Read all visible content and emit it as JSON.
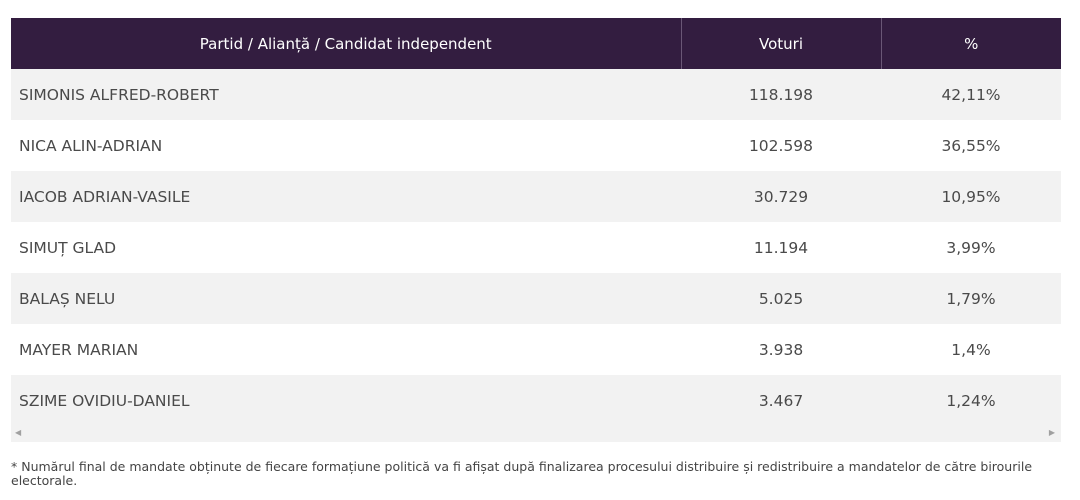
{
  "table": {
    "headers": {
      "party": "Partid / Alianță / Candidat independent",
      "votes": "Voturi",
      "percent": "%"
    },
    "rows": [
      {
        "name": "SIMONIS ALFRED-ROBERT",
        "votes": "118.198",
        "percent": "42,11%"
      },
      {
        "name": "NICA ALIN-ADRIAN",
        "votes": "102.598",
        "percent": "36,55%"
      },
      {
        "name": "IACOB ADRIAN-VASILE",
        "votes": "30.729",
        "percent": "10,95%"
      },
      {
        "name": "SIMUȚ GLAD",
        "votes": "11.194",
        "percent": "3,99%"
      },
      {
        "name": "BALAȘ NELU",
        "votes": "5.025",
        "percent": "1,79%"
      },
      {
        "name": "MAYER MARIAN",
        "votes": "3.938",
        "percent": "1,4%"
      },
      {
        "name": "SZIME OVIDIU-DANIEL",
        "votes": "3.467",
        "percent": "1,24%"
      }
    ]
  },
  "scrollbar": {
    "left_icon": "arrow-left-icon",
    "right_icon": "arrow-right-icon"
  },
  "colors": {
    "header_bg": "#331d40",
    "row_alt_bg": "#f2f2f2"
  },
  "footnote": "* Numărul final de mandate obținute de fiecare formațiune politică va fi afișat după finalizarea procesului distribuire și redistribuire a mandatelor de către birourile electorale."
}
